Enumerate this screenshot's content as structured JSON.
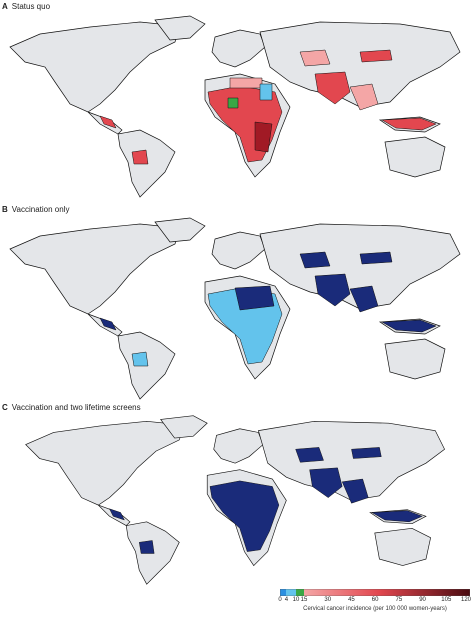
{
  "panels": [
    {
      "letter": "A",
      "title": "Status quo"
    },
    {
      "letter": "B",
      "title": "Vaccination only"
    },
    {
      "letter": "C",
      "title": "Vaccination and two lifetime screens"
    }
  ],
  "legend": {
    "title": "Cervical cancer incidence (per 100 000 women-years)",
    "ticks": [
      "0",
      "4",
      "10",
      "15",
      "30",
      "45",
      "60",
      "75",
      "90",
      "105",
      "120"
    ],
    "tick_values": [
      0,
      4,
      10,
      15,
      30,
      45,
      60,
      75,
      90,
      105,
      120
    ],
    "range": [
      0,
      120
    ],
    "colors": {
      "low": "#2b8fe0",
      "green": "#3aa845",
      "pink": "#f4a6a6",
      "red": "#e2474f",
      "dark_red": "#4a0a10",
      "navy": "#1a2b7a",
      "light_blue": "#63c3ec",
      "no_data": "#e4e6e9"
    }
  }
}
